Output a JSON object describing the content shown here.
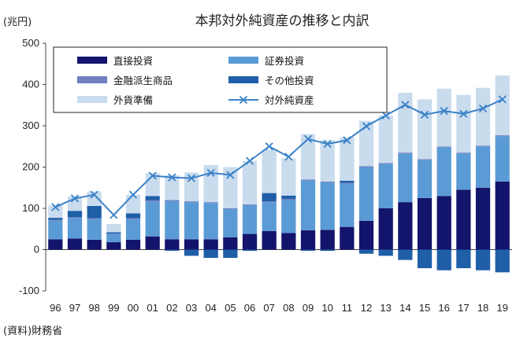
{
  "chart_data": {
    "type": "bar",
    "title": "本邦対外純資産の推移と内訳",
    "unit_label": "(兆円)",
    "source": "(資料)財務省",
    "categories": [
      "96",
      "97",
      "98",
      "99",
      "00",
      "01",
      "02",
      "03",
      "04",
      "05",
      "06",
      "07",
      "08",
      "09",
      "10",
      "11",
      "12",
      "13",
      "14",
      "15",
      "16",
      "17",
      "18",
      "19"
    ],
    "ylim": [
      -100,
      500
    ],
    "yticks": [
      500,
      400,
      300,
      200,
      100,
      0,
      -100
    ],
    "stacked": true,
    "legend_position": "top-left",
    "series": [
      {
        "name": "直接投資",
        "color": "#13146b",
        "values": [
          25,
          27,
          24,
          18,
          24,
          32,
          25,
          25,
          25,
          30,
          38,
          45,
          40,
          47,
          48,
          55,
          70,
          100,
          115,
          125,
          130,
          145,
          150,
          165
        ]
      },
      {
        "name": "証券投資",
        "color": "#5b9bd5",
        "values": [
          45,
          50,
          50,
          20,
          50,
          85,
          93,
          90,
          88,
          68,
          70,
          70,
          80,
          120,
          115,
          105,
          130,
          108,
          118,
          92,
          118,
          88,
          100,
          110
        ]
      },
      {
        "name": "金融派生商品",
        "color": "#6f7fbf",
        "values": [
          2,
          2,
          2,
          1,
          2,
          3,
          2,
          2,
          2,
          2,
          2,
          2,
          3,
          3,
          2,
          2,
          2,
          2,
          2,
          2,
          2,
          2,
          2,
          2
        ]
      },
      {
        "name": "その他投資",
        "color": "#1f5fa8",
        "values": [
          5,
          15,
          30,
          3,
          12,
          10,
          -3,
          -15,
          -20,
          -20,
          -3,
          20,
          8,
          -3,
          -3,
          5,
          -10,
          -15,
          -25,
          -45,
          -50,
          -45,
          -50,
          -55
        ]
      },
      {
        "name": "外貨準備",
        "color": "#c9dcee",
        "values": [
          30,
          35,
          35,
          20,
          45,
          55,
          60,
          70,
          90,
          100,
          105,
          105,
          90,
          110,
          100,
          105,
          110,
          115,
          145,
          145,
          140,
          140,
          140,
          145
        ]
      }
    ],
    "line_series": {
      "name": "対外純資産",
      "color": "#3a82c8",
      "values": [
        103,
        124,
        133,
        84,
        133,
        179,
        175,
        173,
        186,
        181,
        215,
        250,
        225,
        268,
        256,
        265,
        299,
        325,
        351,
        327,
        336,
        329,
        342,
        364
      ]
    }
  }
}
